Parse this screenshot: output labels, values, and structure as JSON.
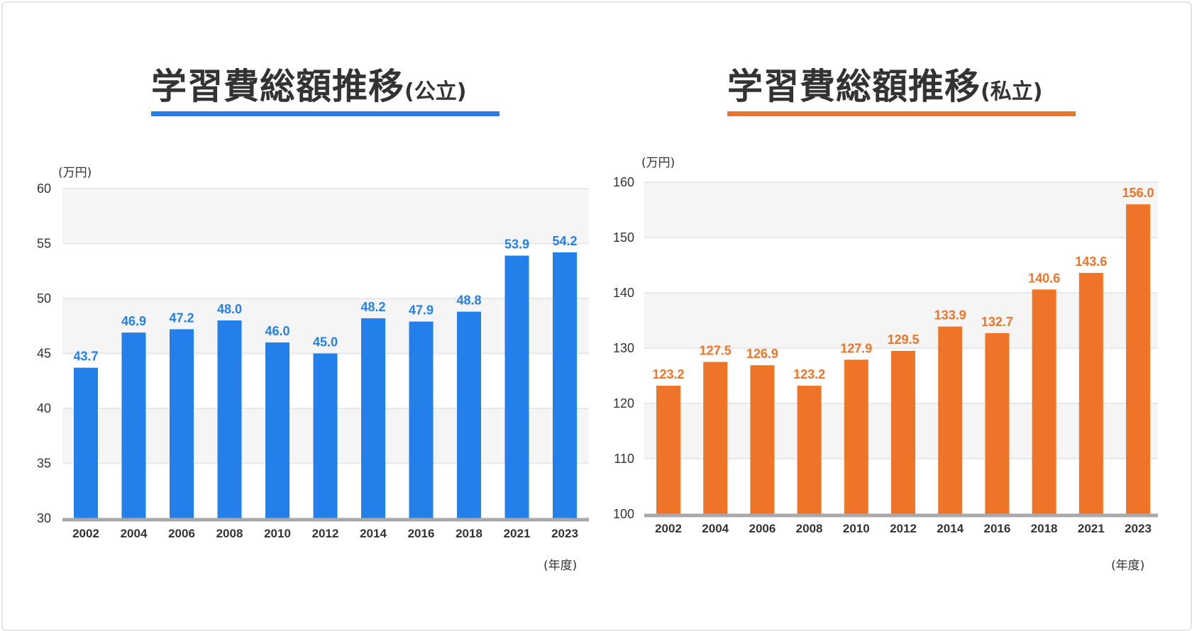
{
  "charts": [
    {
      "id": "public",
      "title": "学習費総額推移",
      "title_suffix": "(公立)",
      "accent": "#2380ea",
      "y_unit": "(万円)",
      "x_unit": "(年度)"
    },
    {
      "id": "private",
      "title": "学習費総額推移",
      "title_suffix": "(私立)",
      "accent": "#ee7427",
      "y_unit": "(万円)",
      "x_unit": "(年度)"
    }
  ],
  "chart_data": [
    {
      "type": "bar",
      "title": "学習費総額推移(公立)",
      "categories": [
        "2002",
        "2004",
        "2006",
        "2008",
        "2010",
        "2012",
        "2014",
        "2016",
        "2018",
        "2021",
        "2023"
      ],
      "values": [
        43.7,
        46.9,
        47.2,
        48.0,
        46.0,
        45.0,
        48.2,
        47.9,
        48.8,
        53.9,
        54.2
      ],
      "labels": [
        "43.7",
        "46.9",
        "47.2",
        "48.0",
        "46.0",
        "45.0",
        "48.2",
        "47.9",
        "48.8",
        "53.9",
        "54.2"
      ],
      "ylim": [
        30,
        60
      ],
      "yticks": [
        30,
        35,
        40,
        45,
        50,
        55,
        60
      ],
      "ylabel": "(万円)",
      "xlabel": "(年度)",
      "color": "#2380ea",
      "grid": true
    },
    {
      "type": "bar",
      "title": "学習費総額推移(私立)",
      "categories": [
        "2002",
        "2004",
        "2006",
        "2008",
        "2010",
        "2012",
        "2014",
        "2016",
        "2018",
        "2021",
        "2023"
      ],
      "values": [
        123.2,
        127.5,
        126.9,
        123.2,
        127.9,
        129.5,
        133.9,
        132.7,
        140.6,
        143.6,
        156.0
      ],
      "labels": [
        "123.2",
        "127.5",
        "126.9",
        "123.2",
        "127.9",
        "129.5",
        "133.9",
        "132.7",
        "140.6",
        "143.6",
        "156.0"
      ],
      "ylim": [
        100,
        160
      ],
      "yticks": [
        100,
        110,
        120,
        130,
        140,
        150,
        160
      ],
      "ylabel": "(万円)",
      "xlabel": "(年度)",
      "color": "#ee7427",
      "grid": true
    }
  ]
}
